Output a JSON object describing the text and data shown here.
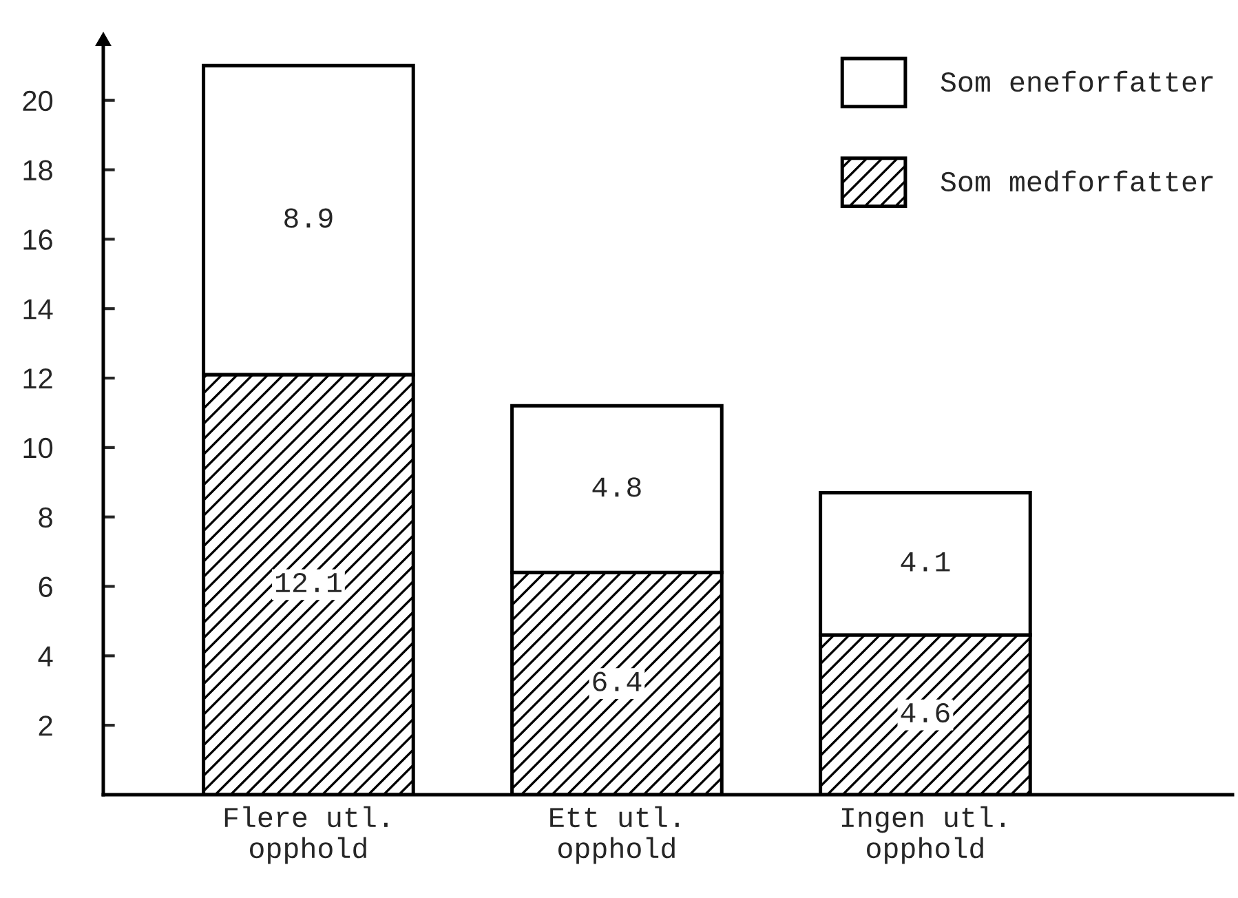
{
  "chart_data": {
    "type": "bar",
    "stacked": true,
    "categories": [
      "Flere utl.\nopphold",
      "Ett utl.\nopphold",
      "Ingen utl.\nopphold"
    ],
    "series": [
      {
        "name": "Som medforfatter",
        "color": "#000000",
        "values": [
          12.1,
          6.4,
          4.6
        ]
      },
      {
        "name": "Som eneforfatter",
        "color": "#ffffff",
        "values": [
          8.9,
          4.8,
          4.1
        ]
      }
    ],
    "ylim": [
      0,
      21.7
    ],
    "yticks": [
      2,
      4,
      6,
      8,
      10,
      12,
      14,
      16,
      18,
      20
    ],
    "data_labels": true,
    "grid": false,
    "legend": "top right"
  }
}
